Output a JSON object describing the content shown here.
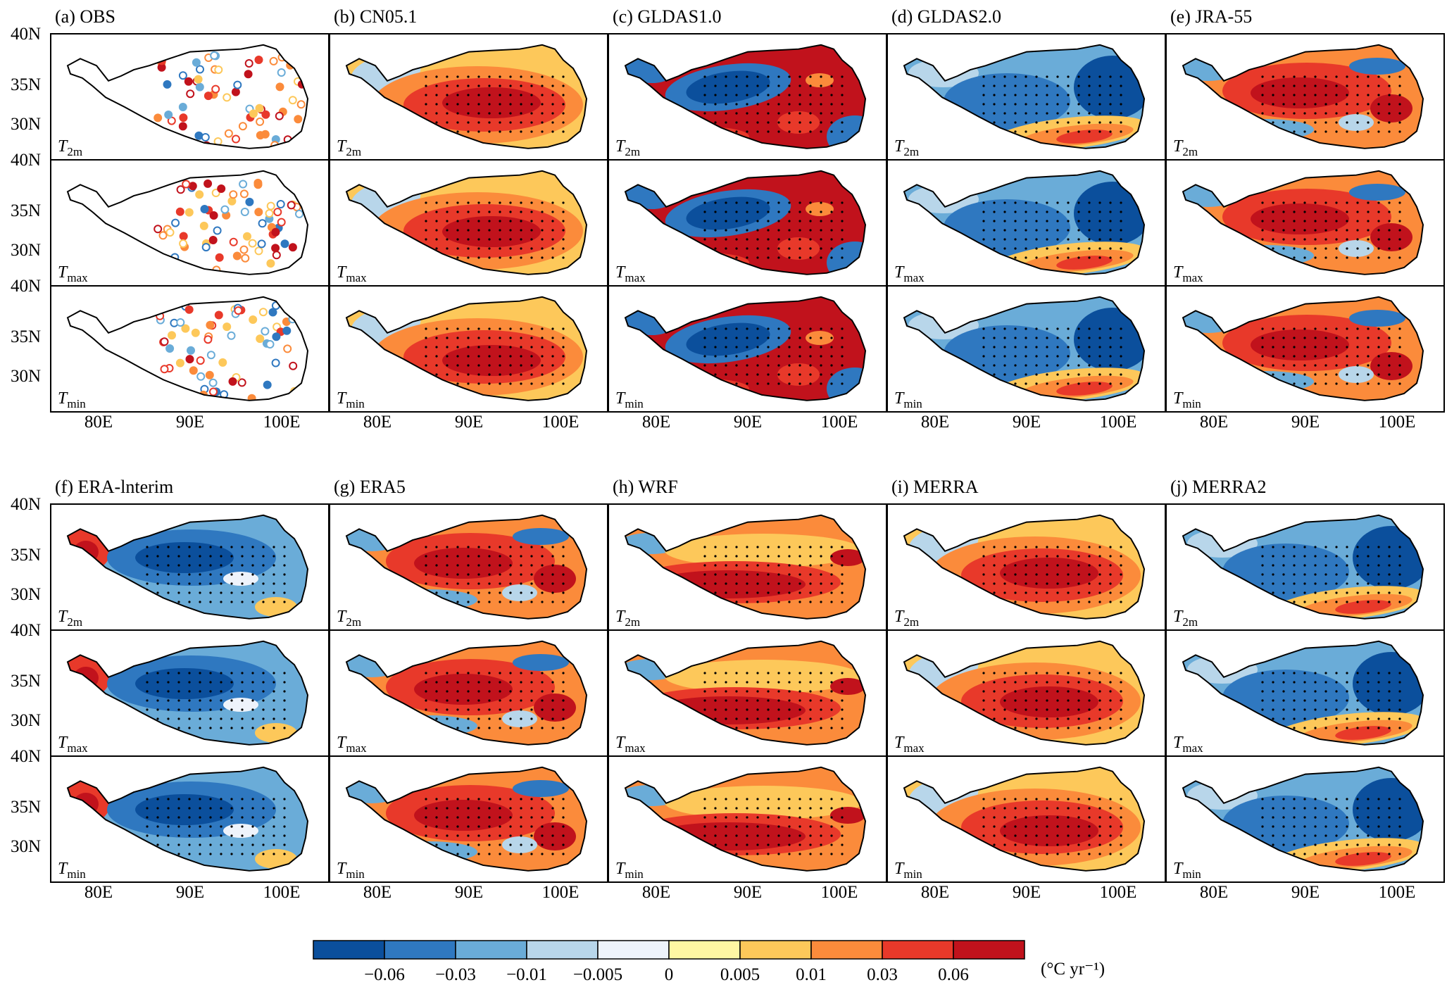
{
  "figure": {
    "row_variables": [
      {
        "base": "T",
        "sub": "2m"
      },
      {
        "base": "T",
        "sub": "max"
      },
      {
        "base": "T",
        "sub": "min"
      }
    ],
    "latitude_labels": [
      "40N",
      "35N",
      "30N"
    ],
    "longitude_labels": [
      "80E",
      "90E",
      "100E"
    ],
    "groups": [
      {
        "panels": [
          {
            "label": "(a) OBS",
            "kind": "stations"
          },
          {
            "label": "(b) CN05.1",
            "kind": "field",
            "pattern": "warm-center"
          },
          {
            "label": "(c) GLDAS1.0",
            "kind": "field",
            "pattern": "hot-with-cold-core"
          },
          {
            "label": "(d) GLDAS2.0",
            "kind": "field",
            "pattern": "cold-with-warm-south"
          },
          {
            "label": "(e) JRA-55",
            "kind": "field",
            "pattern": "warm-mixed"
          }
        ]
      },
      {
        "panels": [
          {
            "label": "(f) ERA-lnterim",
            "kind": "field",
            "pattern": "cold-west-warm"
          },
          {
            "label": "(g) ERA5",
            "kind": "field",
            "pattern": "warm-mixed"
          },
          {
            "label": "(h) WRF",
            "kind": "field",
            "pattern": "hot-band"
          },
          {
            "label": "(i) MERRA",
            "kind": "field",
            "pattern": "warm-center"
          },
          {
            "label": "(j) MERRA2",
            "kind": "field",
            "pattern": "cold-with-warm-south"
          }
        ]
      }
    ]
  },
  "colorbar": {
    "colors": [
      "#0b4f9c",
      "#2f78c0",
      "#6aacd8",
      "#b8d6ea",
      "#eef3fb",
      "#fff7a3",
      "#fdc85a",
      "#fb8b3b",
      "#e8392a",
      "#c1121c"
    ],
    "tick_labels": [
      "−0.06",
      "−0.03",
      "−0.01",
      "−0.005",
      "0",
      "0.005",
      "0.01",
      "0.03",
      "0.06"
    ],
    "unit_label": "(°C yr⁻¹)"
  }
}
